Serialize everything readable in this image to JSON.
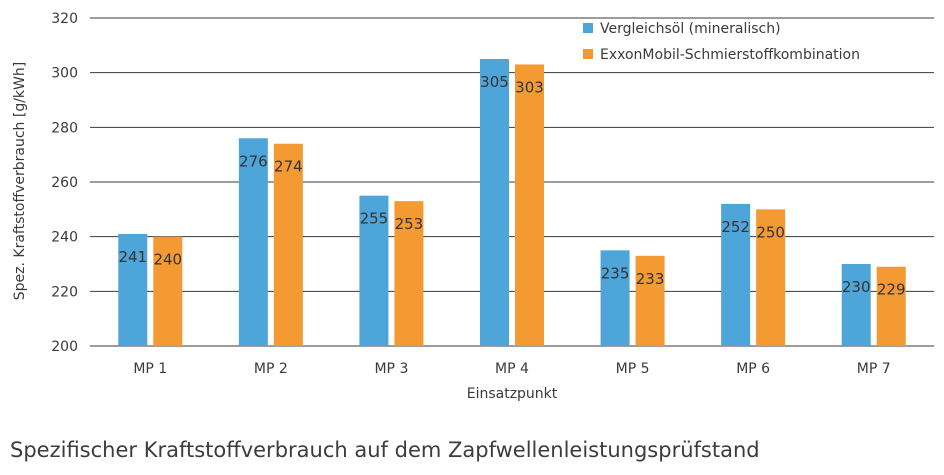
{
  "caption": "Spezifischer Kraftstoffverbrauch auf dem Zapfwellenleistungsprüfstand",
  "chart_data": {
    "type": "bar",
    "title": "",
    "xlabel": "Einsatzpunkt",
    "ylabel": "Spez. Kraftstoffverbrauch [g/kWh]",
    "categories": [
      "MP 1",
      "MP 2",
      "MP 3",
      "MP 4",
      "MP 5",
      "MP 6",
      "MP 7"
    ],
    "ylim": [
      200,
      320
    ],
    "yticks": [
      200,
      220,
      240,
      260,
      280,
      300,
      320
    ],
    "grid": true,
    "legend_position": "top-right",
    "series": [
      {
        "name": "Vergleichsöl (mineralisch)",
        "color": "#4ea5d9",
        "values": [
          241,
          276,
          255,
          305,
          235,
          252,
          230
        ]
      },
      {
        "name": "ExxonMobil-Schmierstoffkombination",
        "color": "#f49a33",
        "values": [
          240,
          274,
          253,
          303,
          233,
          250,
          229
        ]
      }
    ]
  }
}
